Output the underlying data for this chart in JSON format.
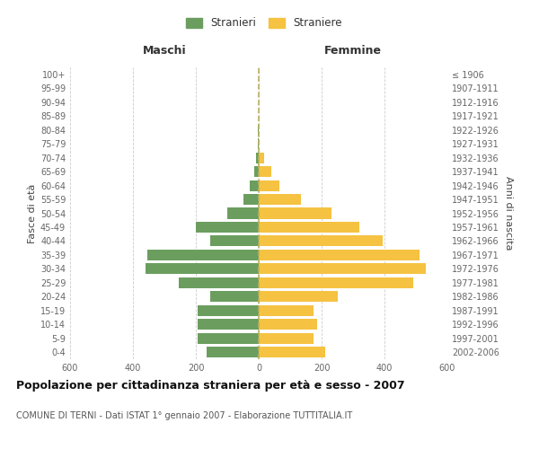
{
  "age_groups_bottom_to_top": [
    "0-4",
    "5-9",
    "10-14",
    "15-19",
    "20-24",
    "25-29",
    "30-34",
    "35-39",
    "40-44",
    "45-49",
    "50-54",
    "55-59",
    "60-64",
    "65-69",
    "70-74",
    "75-79",
    "80-84",
    "85-89",
    "90-94",
    "95-99",
    "100+"
  ],
  "birth_years_bottom_to_top": [
    "2002-2006",
    "1997-2001",
    "1992-1996",
    "1987-1991",
    "1982-1986",
    "1977-1981",
    "1972-1976",
    "1967-1971",
    "1962-1966",
    "1957-1961",
    "1952-1956",
    "1947-1951",
    "1942-1946",
    "1937-1941",
    "1932-1936",
    "1927-1931",
    "1922-1926",
    "1917-1921",
    "1912-1916",
    "1907-1911",
    "≤ 1906"
  ],
  "maschi_bottom_to_top": [
    165,
    195,
    195,
    195,
    155,
    255,
    360,
    355,
    155,
    200,
    100,
    50,
    30,
    15,
    10,
    3,
    2,
    0,
    0,
    0,
    0
  ],
  "femmine_bottom_to_top": [
    210,
    175,
    185,
    175,
    250,
    490,
    530,
    510,
    395,
    320,
    230,
    135,
    65,
    40,
    18,
    0,
    0,
    0,
    0,
    0,
    0
  ],
  "maschi_color": "#6b9e5e",
  "femmine_color": "#f5c242",
  "title": "Popolazione per cittadinanza straniera per età e sesso - 2007",
  "subtitle": "COMUNE DI TERNI - Dati ISTAT 1° gennaio 2007 - Elaborazione TUTTITALIA.IT",
  "xlabel_left": "Maschi",
  "xlabel_right": "Femmine",
  "ylabel_left": "Fasce di età",
  "ylabel_right": "Anni di nascita",
  "legend_stranieri": "Stranieri",
  "legend_straniere": "Straniere",
  "xlim": 600,
  "xticks": [
    -600,
    -400,
    -200,
    0,
    200,
    400,
    600
  ],
  "xticklabels": [
    "600",
    "400",
    "200",
    "0",
    "200",
    "400",
    "600"
  ],
  "background_color": "#ffffff",
  "grid_color": "#cccccc"
}
